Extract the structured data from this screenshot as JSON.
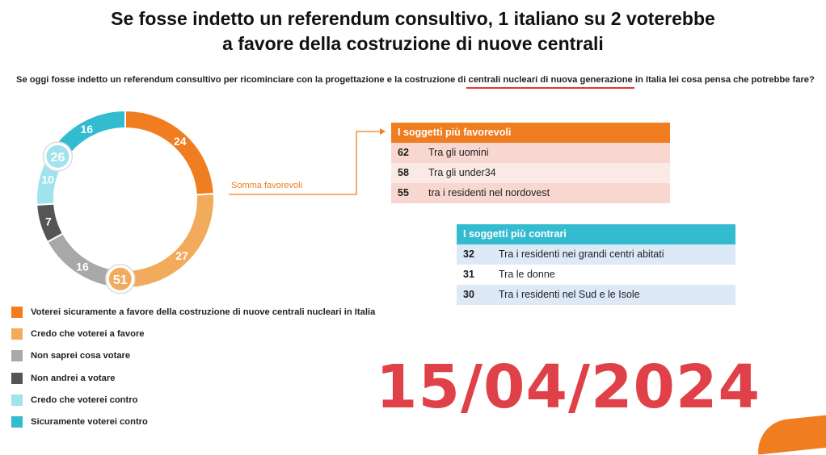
{
  "title_line1": "Se fosse indetto un referendum consultivo, 1 italiano su 2 voterebbe",
  "title_line2": "a favore della costruzione di nuove centrali",
  "question": {
    "before": "Se oggi fosse indetto un referendum consultivo per ricominciare con la progettazione e la costruzione di ",
    "highlight": "centrali nucleari di nuova generazione",
    "after": " in Italia lei cosa pensa che potrebbe fare?"
  },
  "chart_data": {
    "type": "pie",
    "donut": true,
    "slices": [
      {
        "label": "Voterei sicuramente a favore della costruzione di nuove centrali nucleari in Italia",
        "value": 24,
        "color": "#f07d20"
      },
      {
        "label": "Credo che voterei a favore",
        "value": 27,
        "color": "#f2ab5c"
      },
      {
        "label": "Non saprei cosa votare",
        "value": 16,
        "color": "#a8a8a8"
      },
      {
        "label": "Non andrei a votare",
        "value": 7,
        "color": "#555555"
      },
      {
        "label": "Credo che voterei contro",
        "value": 10,
        "color": "#9ee3ee"
      },
      {
        "label": "Sicuramente voterei contro",
        "value": 16,
        "color": "#33bbd0"
      }
    ],
    "totals": [
      {
        "value": 51
      },
      {
        "value": 26
      }
    ],
    "annotation": "Somma favorevoli"
  },
  "favorevoli": {
    "header": "I soggetti più favorevoli",
    "rows": [
      {
        "num": "62",
        "label": "Tra gli uomini"
      },
      {
        "num": "58",
        "label": "Tra gli under34"
      },
      {
        "num": "55",
        "label": "tra i residenti nel nordovest"
      }
    ]
  },
  "contrari": {
    "header": "I soggetti più contrari",
    "rows": [
      {
        "num": "32",
        "label": "Tra i residenti nei grandi centri abitati"
      },
      {
        "num": "31",
        "label": "Tra le donne"
      },
      {
        "num": "30",
        "label": "Tra i residenti nel Sud e le Isole"
      }
    ]
  },
  "date_stamp": "15/04/2024",
  "colors": {
    "orange": "#f07d20",
    "teal": "#33bbd0",
    "date_red": "#e04048"
  }
}
